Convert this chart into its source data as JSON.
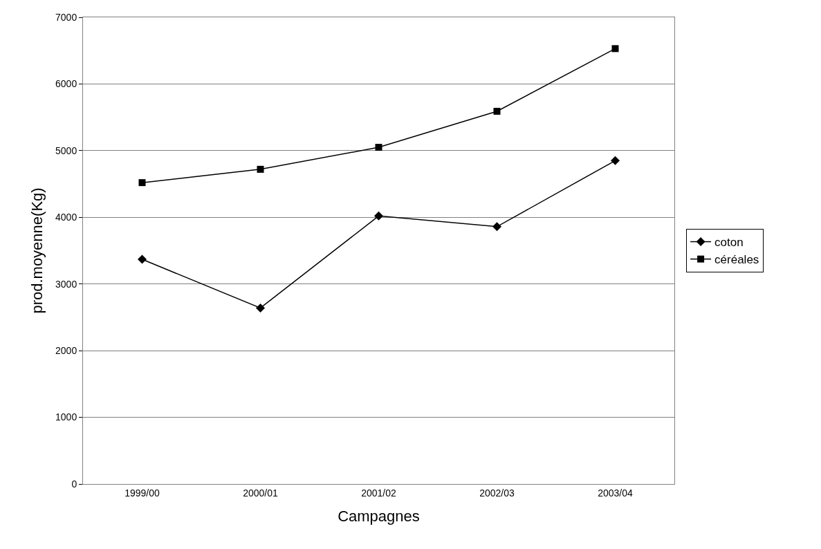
{
  "chart_data": {
    "type": "line",
    "xlabel": "Campagnes",
    "ylabel": "prod.moyenne(Kg)",
    "categories": [
      "1999/00",
      "2000/01",
      "2001/02",
      "2002/03",
      "2003/04"
    ],
    "series": [
      {
        "name": "coton",
        "color": "#000000",
        "marker": "diamond",
        "values": [
          3370,
          2640,
          4020,
          3860,
          4850
        ]
      },
      {
        "name": "céréales",
        "color": "#000000",
        "marker": "square",
        "values": [
          4520,
          4720,
          5050,
          5590,
          6530
        ]
      }
    ],
    "ylim": [
      0,
      7000
    ],
    "yticks": [
      0,
      1000,
      2000,
      3000,
      4000,
      5000,
      6000,
      7000
    ],
    "grid": "y",
    "legend": "right",
    "line_style": "solid"
  }
}
